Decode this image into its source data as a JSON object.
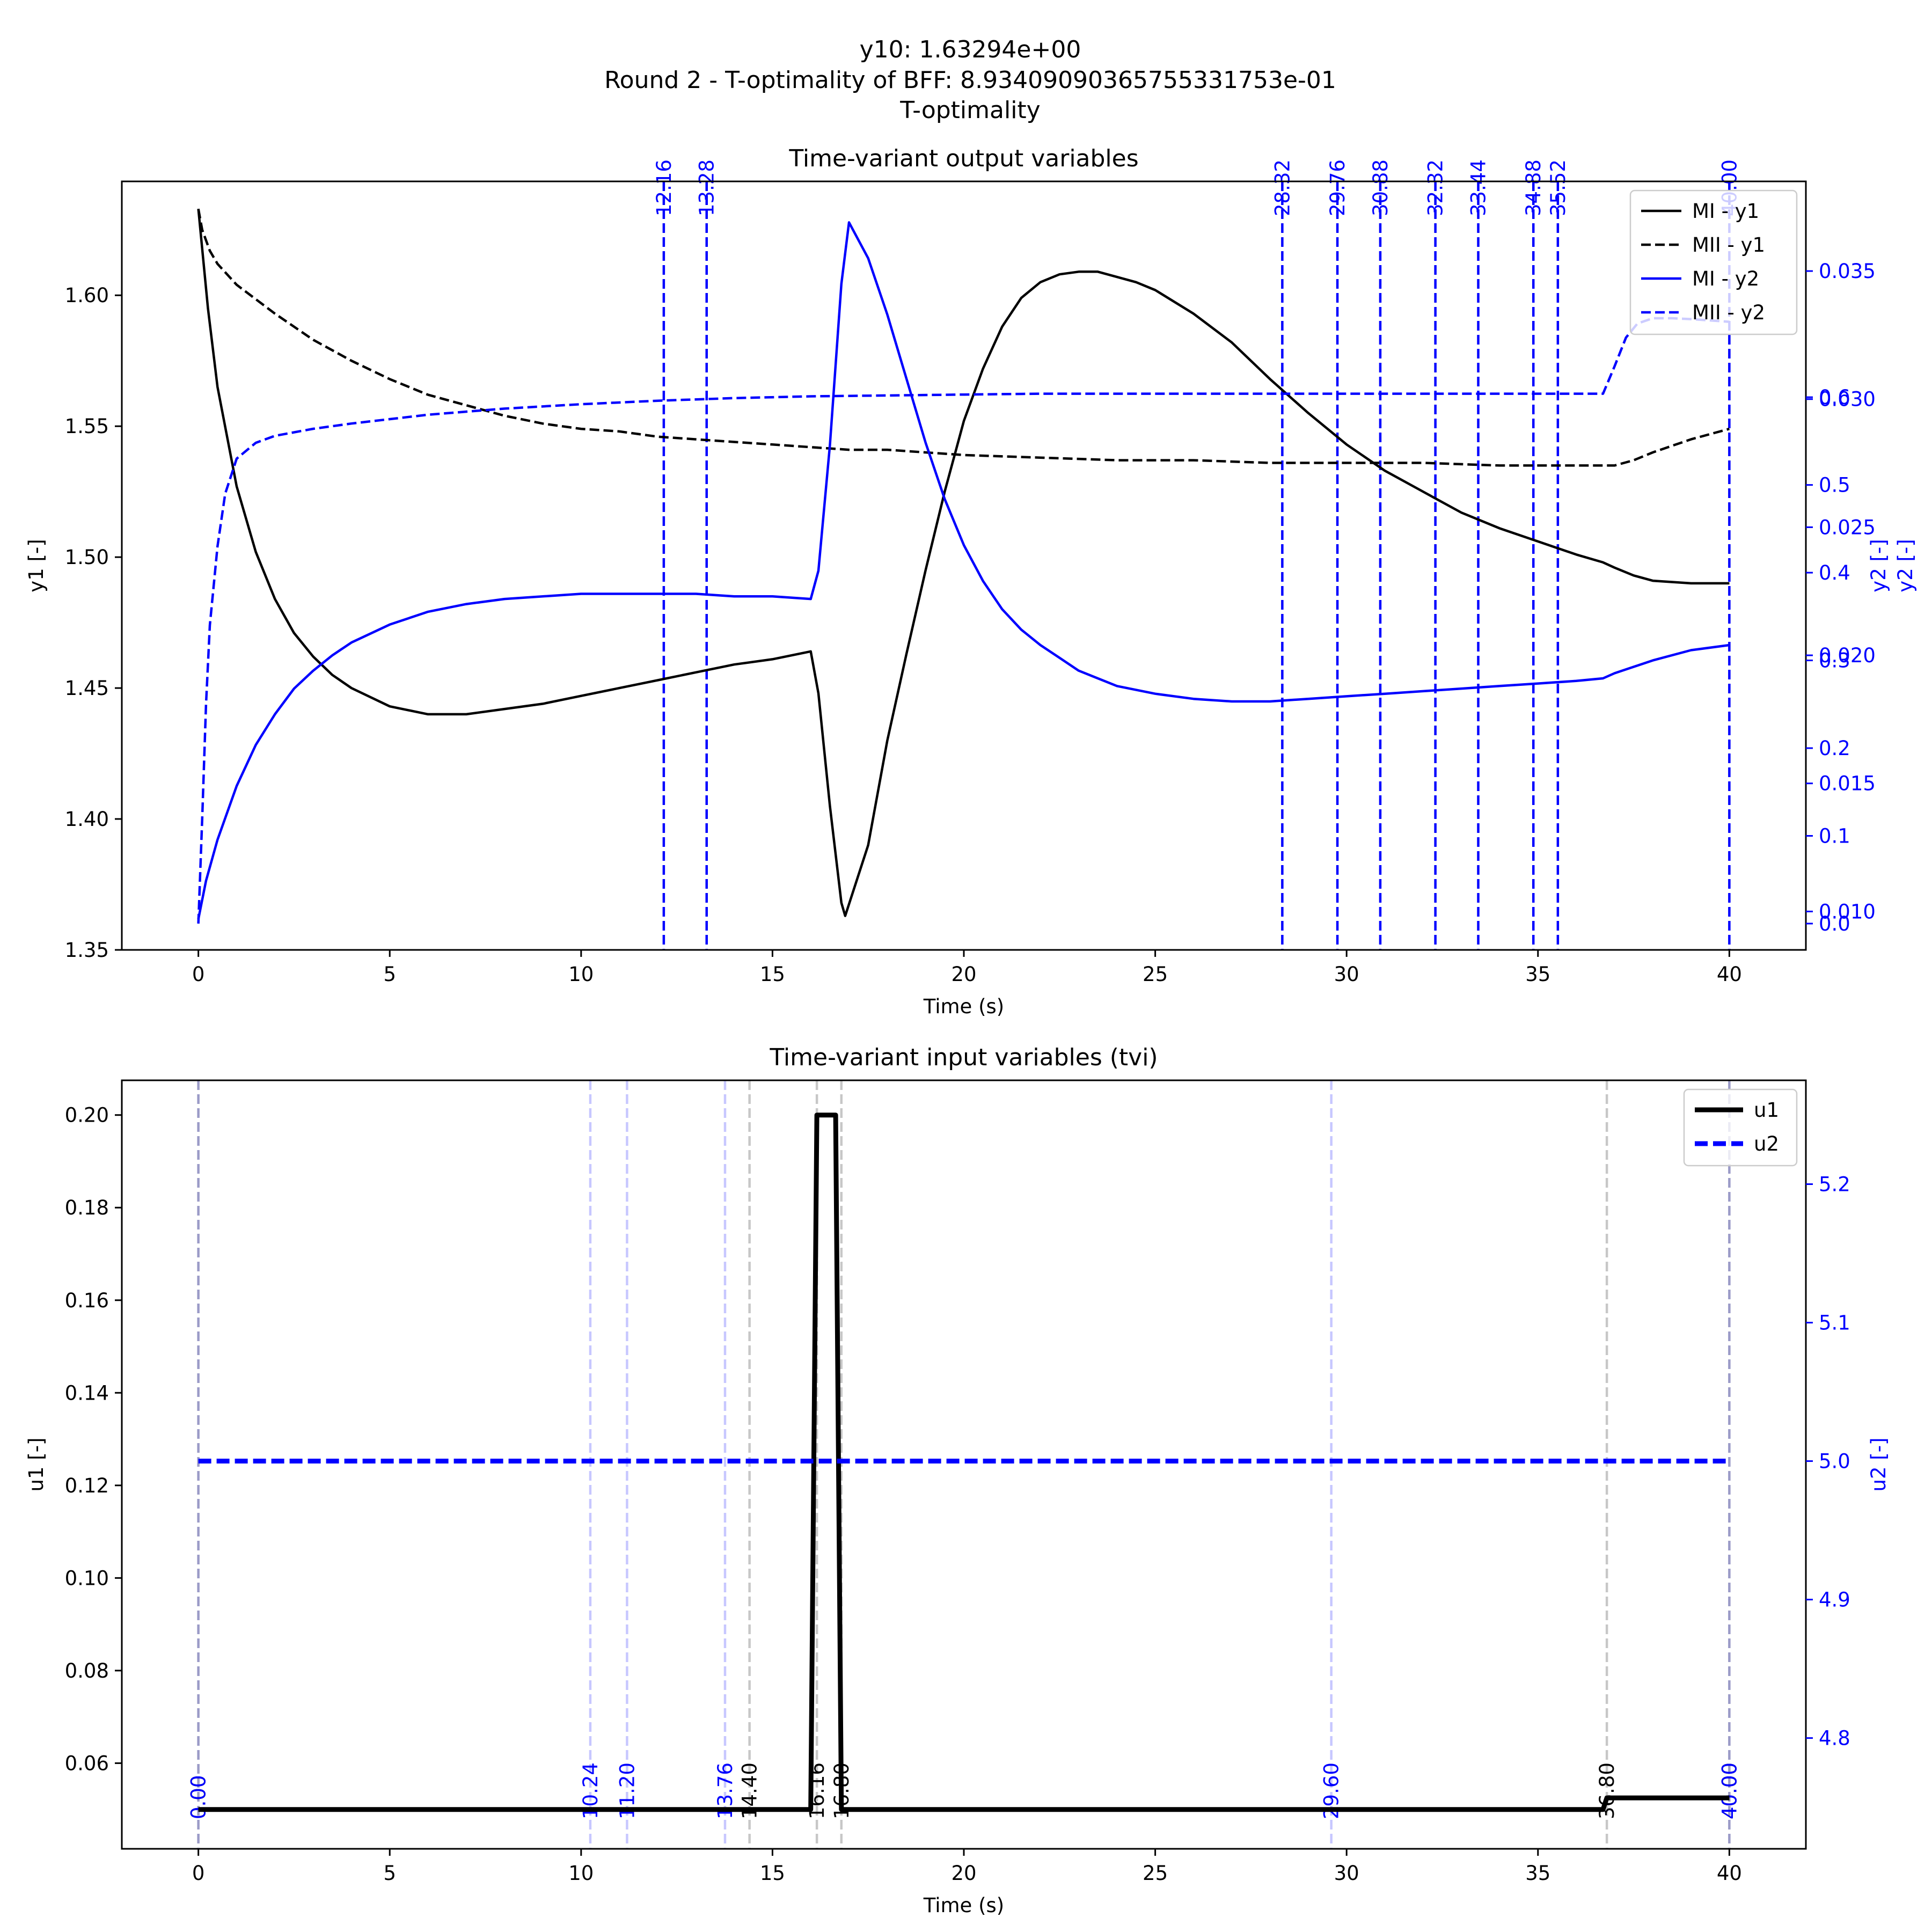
{
  "figure": {
    "suptitle_lines": [
      "y10: 1.63294e+00",
      "Round 2 - T-optimality of BFF: 8.93409090365755331753e-01",
      "T-optimality"
    ]
  },
  "chart_data": [
    {
      "type": "line",
      "title": "Time-variant output variables",
      "xlabel": "Time (s)",
      "ylabel": "y1 [-]",
      "ylabel_right": "y2 [-]",
      "ylabel_right2": "y2 [-]",
      "xlim": [
        -2,
        42
      ],
      "ylim": [
        1.35,
        1.6435
      ],
      "ylim_right_a": [
        0.0085,
        0.0385
      ],
      "ylim_right_b": [
        -0.03,
        0.846
      ],
      "xticks": [
        "0",
        "5",
        "10",
        "15",
        "20",
        "25",
        "30",
        "35",
        "40"
      ],
      "yticks": [
        "1.35",
        "1.40",
        "1.45",
        "1.50",
        "1.55",
        "1.60"
      ],
      "yticks_right_a": [
        "0.010",
        "0.015",
        "0.020",
        "0.025",
        "0.030",
        "0.035"
      ],
      "yticks_right_b": [
        "0.0",
        "0.1",
        "0.2",
        "0.3",
        "0.4",
        "0.5",
        "0.6"
      ],
      "legend": {
        "location": "upper right",
        "entries": [
          "MI - y1",
          "MII - y1",
          "MI - y2",
          "MII - y2"
        ]
      },
      "sampling_lines": [
        "12.16",
        "13.28",
        "28.32",
        "29.76",
        "30.88",
        "32.32",
        "33.44",
        "34.88",
        "35.52",
        "40.00"
      ],
      "sampling_lines_x": [
        12.16,
        13.28,
        28.32,
        29.76,
        30.88,
        32.32,
        33.44,
        34.88,
        35.52,
        40.0
      ],
      "series": [
        {
          "name": "MI - y1",
          "color": "#000000",
          "dash": "solid",
          "axis": "left",
          "points": [
            [
              0,
              1.633
            ],
            [
              0.25,
              1.595
            ],
            [
              0.5,
              1.565
            ],
            [
              1,
              1.527
            ],
            [
              1.5,
              1.502
            ],
            [
              2,
              1.484
            ],
            [
              2.5,
              1.471
            ],
            [
              3,
              1.462
            ],
            [
              3.5,
              1.455
            ],
            [
              4,
              1.45
            ],
            [
              5,
              1.443
            ],
            [
              6,
              1.44
            ],
            [
              7,
              1.44
            ],
            [
              8,
              1.442
            ],
            [
              9,
              1.444
            ],
            [
              10,
              1.447
            ],
            [
              11,
              1.45
            ],
            [
              12,
              1.453
            ],
            [
              13,
              1.456
            ],
            [
              14,
              1.459
            ],
            [
              15,
              1.461
            ],
            [
              16,
              1.464
            ],
            [
              16.2,
              1.448
            ],
            [
              16.5,
              1.405
            ],
            [
              16.8,
              1.368
            ],
            [
              16.9,
              1.363
            ],
            [
              17.5,
              1.39
            ],
            [
              18,
              1.43
            ],
            [
              18.5,
              1.463
            ],
            [
              19,
              1.495
            ],
            [
              19.5,
              1.525
            ],
            [
              20,
              1.552
            ],
            [
              20.5,
              1.572
            ],
            [
              21,
              1.588
            ],
            [
              21.5,
              1.599
            ],
            [
              22,
              1.605
            ],
            [
              22.5,
              1.608
            ],
            [
              23,
              1.609
            ],
            [
              23.5,
              1.609
            ],
            [
              24,
              1.607
            ],
            [
              24.5,
              1.605
            ],
            [
              25,
              1.602
            ],
            [
              26,
              1.593
            ],
            [
              27,
              1.582
            ],
            [
              28,
              1.568
            ],
            [
              29,
              1.555
            ],
            [
              30,
              1.543
            ],
            [
              31,
              1.533
            ],
            [
              32,
              1.525
            ],
            [
              33,
              1.517
            ],
            [
              34,
              1.511
            ],
            [
              35,
              1.506
            ],
            [
              36,
              1.501
            ],
            [
              36.7,
              1.498
            ],
            [
              37,
              1.496
            ],
            [
              37.5,
              1.493
            ],
            [
              38,
              1.491
            ],
            [
              39,
              1.49
            ],
            [
              40,
              1.49
            ]
          ]
        },
        {
          "name": "MII - y1",
          "color": "#000000",
          "dash": "dashed",
          "axis": "left",
          "points": [
            [
              0,
              1.633
            ],
            [
              0.1,
              1.625
            ],
            [
              0.3,
              1.617
            ],
            [
              0.5,
              1.612
            ],
            [
              1,
              1.604
            ],
            [
              2,
              1.593
            ],
            [
              3,
              1.583
            ],
            [
              4,
              1.575
            ],
            [
              5,
              1.568
            ],
            [
              6,
              1.562
            ],
            [
              7,
              1.558
            ],
            [
              8,
              1.554
            ],
            [
              9,
              1.551
            ],
            [
              10,
              1.549
            ],
            [
              11,
              1.548
            ],
            [
              12,
              1.546
            ],
            [
              13,
              1.545
            ],
            [
              14,
              1.544
            ],
            [
              15,
              1.543
            ],
            [
              16,
              1.542
            ],
            [
              17,
              1.541
            ],
            [
              18,
              1.541
            ],
            [
              19,
              1.54
            ],
            [
              20,
              1.539
            ],
            [
              22,
              1.538
            ],
            [
              24,
              1.537
            ],
            [
              26,
              1.537
            ],
            [
              28,
              1.536
            ],
            [
              30,
              1.536
            ],
            [
              32,
              1.536
            ],
            [
              34,
              1.535
            ],
            [
              36,
              1.535
            ],
            [
              37,
              1.535
            ],
            [
              37.5,
              1.537
            ],
            [
              38,
              1.54
            ],
            [
              39,
              1.545
            ],
            [
              40,
              1.549
            ]
          ]
        },
        {
          "name": "MI - y2",
          "color": "#0000ff",
          "dash": "solid",
          "axis": "right_a",
          "points": [
            [
              0,
              0.0097
            ],
            [
              0.2,
              0.0112
            ],
            [
              0.5,
              0.0128
            ],
            [
              1,
              0.0149
            ],
            [
              1.5,
              0.0165
            ],
            [
              2,
              0.0177
            ],
            [
              2.5,
              0.0187
            ],
            [
              3,
              0.0194
            ],
            [
              3.5,
              0.02
            ],
            [
              4,
              0.0205
            ],
            [
              5,
              0.0212
            ],
            [
              6,
              0.0217
            ],
            [
              7,
              0.022
            ],
            [
              8,
              0.0222
            ],
            [
              9,
              0.0223
            ],
            [
              10,
              0.0224
            ],
            [
              11,
              0.0224
            ],
            [
              12,
              0.0224
            ],
            [
              13,
              0.0224
            ],
            [
              14,
              0.0223
            ],
            [
              15,
              0.0223
            ],
            [
              16,
              0.0222
            ],
            [
              16.2,
              0.0233
            ],
            [
              16.5,
              0.0282
            ],
            [
              16.8,
              0.0345
            ],
            [
              17,
              0.0369
            ],
            [
              17.5,
              0.0355
            ],
            [
              18,
              0.0333
            ],
            [
              18.5,
              0.0308
            ],
            [
              19,
              0.0283
            ],
            [
              19.5,
              0.0261
            ],
            [
              20,
              0.0243
            ],
            [
              20.5,
              0.0229
            ],
            [
              21,
              0.0218
            ],
            [
              21.5,
              0.021
            ],
            [
              22,
              0.0204
            ],
            [
              22.5,
              0.0199
            ],
            [
              23,
              0.0194
            ],
            [
              24,
              0.0188
            ],
            [
              25,
              0.0185
            ],
            [
              26,
              0.0183
            ],
            [
              27,
              0.0182
            ],
            [
              28,
              0.0182
            ],
            [
              29,
              0.0183
            ],
            [
              30,
              0.0184
            ],
            [
              31,
              0.0185
            ],
            [
              32,
              0.0186
            ],
            [
              33,
              0.0187
            ],
            [
              34,
              0.0188
            ],
            [
              35,
              0.0189
            ],
            [
              36,
              0.019
            ],
            [
              36.7,
              0.0191
            ],
            [
              37,
              0.0193
            ],
            [
              38,
              0.0198
            ],
            [
              39,
              0.0202
            ],
            [
              40,
              0.0204
            ]
          ]
        },
        {
          "name": "MII - y2",
          "color": "#0000ff",
          "dash": "dashed",
          "axis": "right_b",
          "points": [
            [
              0,
              0.0
            ],
            [
              0.1,
              0.12
            ],
            [
              0.2,
              0.25
            ],
            [
              0.3,
              0.34
            ],
            [
              0.5,
              0.43
            ],
            [
              0.7,
              0.49
            ],
            [
              1,
              0.53
            ],
            [
              1.5,
              0.548
            ],
            [
              2,
              0.556
            ],
            [
              3,
              0.564
            ],
            [
              4,
              0.57
            ],
            [
              5,
              0.575
            ],
            [
              6,
              0.58
            ],
            [
              8,
              0.587
            ],
            [
              10,
              0.592
            ],
            [
              12,
              0.596
            ],
            [
              14,
              0.599
            ],
            [
              16,
              0.601
            ],
            [
              18,
              0.602
            ],
            [
              20,
              0.603
            ],
            [
              22,
              0.604
            ],
            [
              25,
              0.604
            ],
            [
              30,
              0.604
            ],
            [
              35,
              0.604
            ],
            [
              36.7,
              0.604
            ],
            [
              37,
              0.635
            ],
            [
              37.3,
              0.668
            ],
            [
              37.6,
              0.684
            ],
            [
              38,
              0.69
            ],
            [
              38.5,
              0.69
            ],
            [
              39,
              0.689
            ],
            [
              40,
              0.686
            ]
          ]
        }
      ]
    },
    {
      "type": "line",
      "title": "Time-variant input variables (tvi)",
      "xlabel": "Time (s)",
      "ylabel": "u1 [-]",
      "ylabel_right": "u2 [-]",
      "xlim": [
        -2,
        42
      ],
      "ylim": [
        0.0415,
        0.2075
      ],
      "ylim_right": [
        4.72,
        5.275
      ],
      "xticks": [
        "0",
        "5",
        "10",
        "15",
        "20",
        "25",
        "30",
        "35",
        "40"
      ],
      "yticks": [
        "0.06",
        "0.08",
        "0.10",
        "0.12",
        "0.14",
        "0.16",
        "0.18",
        "0.20"
      ],
      "yticks_right": [
        "4.8",
        "4.9",
        "5.0",
        "5.1",
        "5.2"
      ],
      "legend": {
        "location": "upper right",
        "entries": [
          "u1",
          "u2"
        ]
      },
      "switch_lines_u1": [
        "0.00",
        "14.40",
        "16.16",
        "16.80",
        "36.80",
        "40.00"
      ],
      "switch_lines_u1_x": [
        0,
        14.4,
        16.16,
        16.8,
        36.8,
        40
      ],
      "switch_lines_u2": [
        "0.00",
        "10.24",
        "11.20",
        "13.76",
        "29.60",
        "40.00"
      ],
      "switch_lines_u2_x": [
        0,
        10.24,
        11.2,
        13.76,
        29.6,
        40
      ],
      "series": [
        {
          "name": "u1",
          "color": "#000000",
          "dash": "solid",
          "axis": "left",
          "points": [
            [
              0,
              0.05
            ],
            [
              16.0,
              0.05
            ],
            [
              16.16,
              0.2
            ],
            [
              16.65,
              0.2
            ],
            [
              16.8,
              0.05
            ],
            [
              36.7,
              0.05
            ],
            [
              36.8,
              0.0525
            ],
            [
              40,
              0.0525
            ]
          ]
        },
        {
          "name": "u2",
          "color": "#0000ff",
          "dash": "dashed",
          "axis": "right",
          "points": [
            [
              0,
              5.0
            ],
            [
              40,
              5.0
            ]
          ]
        }
      ]
    }
  ]
}
